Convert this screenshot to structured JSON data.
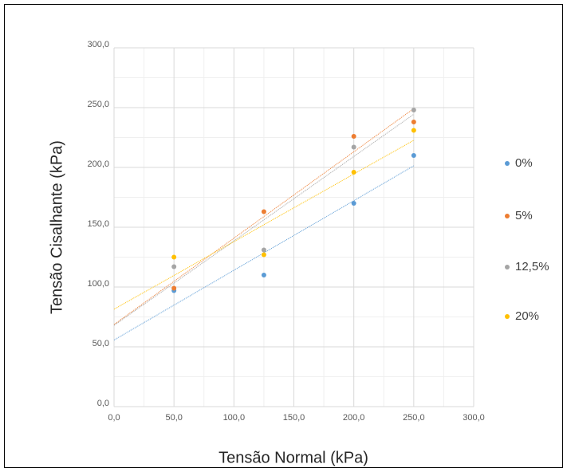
{
  "chart_data": {
    "type": "scatter",
    "x_label": "Tensão Normal (kPa)",
    "y_label": "Tensão Cisalhante (kPa)",
    "series": [
      {
        "name": "0%",
        "color": "#5b9bd5",
        "x": [
          50,
          125,
          200,
          250
        ],
        "values": [
          97,
          110,
          170,
          210
        ]
      },
      {
        "name": "5%",
        "color": "#ed7d31",
        "x": [
          50,
          125,
          200,
          250
        ],
        "values": [
          99,
          163,
          226,
          238
        ]
      },
      {
        "name": "12,5%",
        "color": "#a5a5a5",
        "x": [
          50,
          125,
          200,
          250
        ],
        "values": [
          117,
          131,
          217,
          248
        ]
      },
      {
        "name": "20%",
        "color": "#ffc000",
        "x": [
          50,
          125,
          200,
          250
        ],
        "values": [
          125,
          127,
          196,
          231
        ]
      }
    ],
    "trendline": "linear",
    "xlim": [
      0,
      300
    ],
    "ylim": [
      0,
      300
    ],
    "xticks": [
      {
        "value": 0,
        "label": "0,0"
      },
      {
        "value": 50,
        "label": "50,0"
      },
      {
        "value": 100,
        "label": "100,0"
      },
      {
        "value": 150,
        "label": "150,0"
      },
      {
        "value": 200,
        "label": "200,0"
      },
      {
        "value": 250,
        "label": "250,0"
      },
      {
        "value": 300,
        "label": "300,0"
      }
    ],
    "yticks": [
      {
        "value": 0,
        "label": "0,0"
      },
      {
        "value": 50,
        "label": "50,0"
      },
      {
        "value": 100,
        "label": "100,0"
      },
      {
        "value": 150,
        "label": "150,0"
      },
      {
        "value": 200,
        "label": "200,0"
      },
      {
        "value": 250,
        "label": "250,0"
      },
      {
        "value": 300,
        "label": "300,0"
      }
    ],
    "x_minor_ticks": [
      25,
      75,
      125,
      175,
      225,
      275
    ],
    "y_minor_ticks": [
      25,
      75,
      125,
      175,
      225,
      275
    ],
    "grid": true,
    "legend": "right"
  }
}
